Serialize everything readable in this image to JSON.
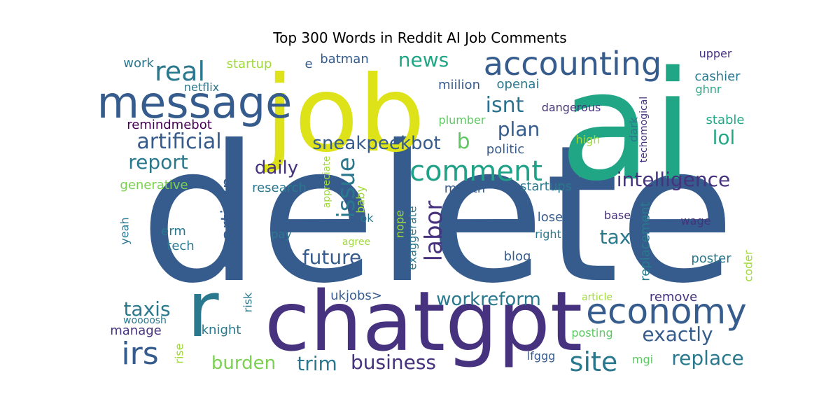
{
  "chart_data": {
    "type": "wordcloud",
    "title": "Top 300 Words in Reddit AI Job Comments",
    "palette": "viridis",
    "words": [
      {
        "text": "delete",
        "weight": 1.0,
        "color": "#365c8d",
        "rotated": false
      },
      {
        "text": "ai",
        "weight": 0.85,
        "color": "#21a685",
        "rotated": false
      },
      {
        "text": "job",
        "weight": 0.7,
        "color": "#dde318",
        "rotated": false
      },
      {
        "text": "chatgpt",
        "weight": 0.55,
        "color": "#46327e",
        "rotated": false
      },
      {
        "text": "r",
        "weight": 0.5,
        "color": "#2a788e",
        "rotated": false
      },
      {
        "text": "message",
        "weight": 0.4,
        "color": "#365c8d",
        "rotated": false
      },
      {
        "text": "accounting",
        "weight": 0.32,
        "color": "#365c8d",
        "rotated": false
      },
      {
        "text": "economy",
        "weight": 0.3,
        "color": "#365c8d",
        "rotated": false
      },
      {
        "text": "comment",
        "weight": 0.27,
        "color": "#1fa187",
        "rotated": false
      },
      {
        "text": "irs",
        "weight": 0.27,
        "color": "#365c8d",
        "rotated": false
      },
      {
        "text": "real",
        "weight": 0.24,
        "color": "#2a788e",
        "rotated": false
      },
      {
        "text": "site",
        "weight": 0.24,
        "color": "#2a788e",
        "rotated": false
      },
      {
        "text": "issue",
        "weight": 0.22,
        "color": "#2a788e",
        "rotated": true
      },
      {
        "text": "labor",
        "weight": 0.22,
        "color": "#46327e",
        "rotated": true
      },
      {
        "text": "isnt",
        "weight": 0.2,
        "color": "#2c728e",
        "rotated": false
      },
      {
        "text": "b",
        "weight": 0.2,
        "color": "#5ec962",
        "rotated": false
      },
      {
        "text": "intelligence",
        "weight": 0.19,
        "color": "#46327e",
        "rotated": false
      },
      {
        "text": "exactly",
        "weight": 0.19,
        "color": "#365c8d",
        "rotated": false
      },
      {
        "text": "artificial",
        "weight": 0.19,
        "color": "#365c8d",
        "rotated": false
      },
      {
        "text": "bipartisan",
        "weight": 0.18,
        "color": "#365c8d",
        "rotated": true
      },
      {
        "text": "replace",
        "weight": 0.18,
        "color": "#2a788e",
        "rotated": false
      },
      {
        "text": "business",
        "weight": 0.18,
        "color": "#46327e",
        "rotated": false
      },
      {
        "text": "news",
        "weight": 0.17,
        "color": "#21a685",
        "rotated": false
      },
      {
        "text": "sneakpeekbot",
        "weight": 0.17,
        "color": "#365c8d",
        "rotated": false
      },
      {
        "text": "future",
        "weight": 0.17,
        "color": "#365c8d",
        "rotated": false
      },
      {
        "text": "report",
        "weight": 0.17,
        "color": "#2a788e",
        "rotated": false
      },
      {
        "text": "plan",
        "weight": 0.17,
        "color": "#365c8d",
        "rotated": false
      },
      {
        "text": "lol",
        "weight": 0.17,
        "color": "#22a884",
        "rotated": false
      },
      {
        "text": "tax",
        "weight": 0.17,
        "color": "#2a788e",
        "rotated": false
      },
      {
        "text": "taxis",
        "weight": 0.16,
        "color": "#2a788e",
        "rotated": false
      },
      {
        "text": "trim",
        "weight": 0.16,
        "color": "#2a788e",
        "rotated": false
      },
      {
        "text": "daily",
        "weight": 0.16,
        "color": "#46327e",
        "rotated": false
      },
      {
        "text": "workreform",
        "weight": 0.16,
        "color": "#2a788e",
        "rotated": false
      },
      {
        "text": "burden",
        "weight": 0.15,
        "color": "#7ad151",
        "rotated": false
      },
      {
        "text": "replacement",
        "weight": 0.12,
        "color": "#2a788e",
        "rotated": true
      },
      {
        "text": "ukjobs>",
        "weight": 0.12,
        "color": "#365c8d",
        "rotated": false
      },
      {
        "text": "cashier",
        "weight": 0.1,
        "color": "#2a788e",
        "rotated": false
      },
      {
        "text": "miilion",
        "weight": 0.1,
        "color": "#365c8d",
        "rotated": false
      },
      {
        "text": "month",
        "weight": 0.1,
        "color": "#365c8d",
        "rotated": false
      },
      {
        "text": "startups",
        "weight": 0.1,
        "color": "#2a788e",
        "rotated": false
      },
      {
        "text": "stable",
        "weight": 0.1,
        "color": "#21a685",
        "rotated": false
      },
      {
        "text": "politic",
        "weight": 0.1,
        "color": "#365c8d",
        "rotated": false
      },
      {
        "text": "poster",
        "weight": 0.1,
        "color": "#2a788e",
        "rotated": false
      },
      {
        "text": "remove",
        "weight": 0.1,
        "color": "#46327e",
        "rotated": false
      },
      {
        "text": "remindmebot",
        "weight": 0.1,
        "color": "#440154",
        "rotated": false
      },
      {
        "text": "batman",
        "weight": 0.1,
        "color": "#365c8d",
        "rotated": false
      },
      {
        "text": "work",
        "weight": 0.1,
        "color": "#2a788e",
        "rotated": false
      },
      {
        "text": "research",
        "weight": 0.1,
        "color": "#2a788e",
        "rotated": false
      },
      {
        "text": "generative",
        "weight": 0.1,
        "color": "#7ad151",
        "rotated": false
      },
      {
        "text": "startup",
        "weight": 0.1,
        "color": "#a0da39",
        "rotated": false
      },
      {
        "text": "blog",
        "weight": 0.1,
        "color": "#365c8d",
        "rotated": false
      },
      {
        "text": "lose",
        "weight": 0.1,
        "color": "#365c8d",
        "rotated": false
      },
      {
        "text": "tech",
        "weight": 0.1,
        "color": "#2a788e",
        "rotated": false
      },
      {
        "text": "erm",
        "weight": 0.1,
        "color": "#2a788e",
        "rotated": false
      },
      {
        "text": "knight",
        "weight": 0.1,
        "color": "#2a788e",
        "rotated": false
      },
      {
        "text": "manage",
        "weight": 0.1,
        "color": "#46327e",
        "rotated": false
      },
      {
        "text": "openai",
        "weight": 0.1,
        "color": "#2a788e",
        "rotated": false
      },
      {
        "text": "e",
        "weight": 0.1,
        "color": "#365c8d",
        "rotated": false
      },
      {
        "text": "upper",
        "weight": 0.09,
        "color": "#46327e",
        "rotated": false
      },
      {
        "text": "ghnr",
        "weight": 0.09,
        "color": "#22a884",
        "rotated": false
      },
      {
        "text": "netflix",
        "weight": 0.09,
        "color": "#2a788e",
        "rotated": false
      },
      {
        "text": "dangerous",
        "weight": 0.09,
        "color": "#46327e",
        "rotated": false
      },
      {
        "text": "techomogical",
        "weight": 0.09,
        "color": "#46327e",
        "rotated": true
      },
      {
        "text": "dark",
        "weight": 0.09,
        "color": "#2a788e",
        "rotated": true
      },
      {
        "text": "high",
        "weight": 0.09,
        "color": "#a0da39",
        "rotated": false
      },
      {
        "text": "plumber",
        "weight": 0.09,
        "color": "#5ec962",
        "rotated": false
      },
      {
        "text": "right",
        "weight": 0.09,
        "color": "#2a788e",
        "rotated": false
      },
      {
        "text": "base",
        "weight": 0.09,
        "color": "#46327e",
        "rotated": false
      },
      {
        "text": "wage",
        "weight": 0.09,
        "color": "#46327e",
        "rotated": false
      },
      {
        "text": "coder",
        "weight": 0.09,
        "color": "#a0da39",
        "rotated": true
      },
      {
        "text": "article",
        "weight": 0.09,
        "color": "#a0da39",
        "rotated": false
      },
      {
        "text": "posting",
        "weight": 0.09,
        "color": "#5ec962",
        "rotated": false
      },
      {
        "text": "mgi",
        "weight": 0.09,
        "color": "#5ec962",
        "rotated": false
      },
      {
        "text": "lfggg",
        "weight": 0.09,
        "color": "#365c8d",
        "rotated": false
      },
      {
        "text": "yeah",
        "weight": 0.09,
        "color": "#2a788e",
        "rotated": true
      },
      {
        "text": "risk",
        "weight": 0.09,
        "color": "#2a788e",
        "rotated": true
      },
      {
        "text": "rise",
        "weight": 0.09,
        "color": "#a0da39",
        "rotated": true
      },
      {
        "text": "woooosh",
        "weight": 0.08,
        "color": "#2a788e",
        "rotated": false
      },
      {
        "text": "pay",
        "weight": 0.08,
        "color": "#2a788e",
        "rotated": false
      },
      {
        "text": "ok",
        "weight": 0.08,
        "color": "#2a788e",
        "rotated": false
      },
      {
        "text": "agree",
        "weight": 0.08,
        "color": "#a0da39",
        "rotated": false
      },
      {
        "text": "appreciate",
        "weight": 0.08,
        "color": "#a0da39",
        "rotated": true
      },
      {
        "text": "baby",
        "weight": 0.08,
        "color": "#a0da39",
        "rotated": true
      },
      {
        "text": "nope",
        "weight": 0.08,
        "color": "#a0da39",
        "rotated": true
      },
      {
        "text": "exaggerate",
        "weight": 0.08,
        "color": "#2a788e",
        "rotated": true
      }
    ]
  }
}
